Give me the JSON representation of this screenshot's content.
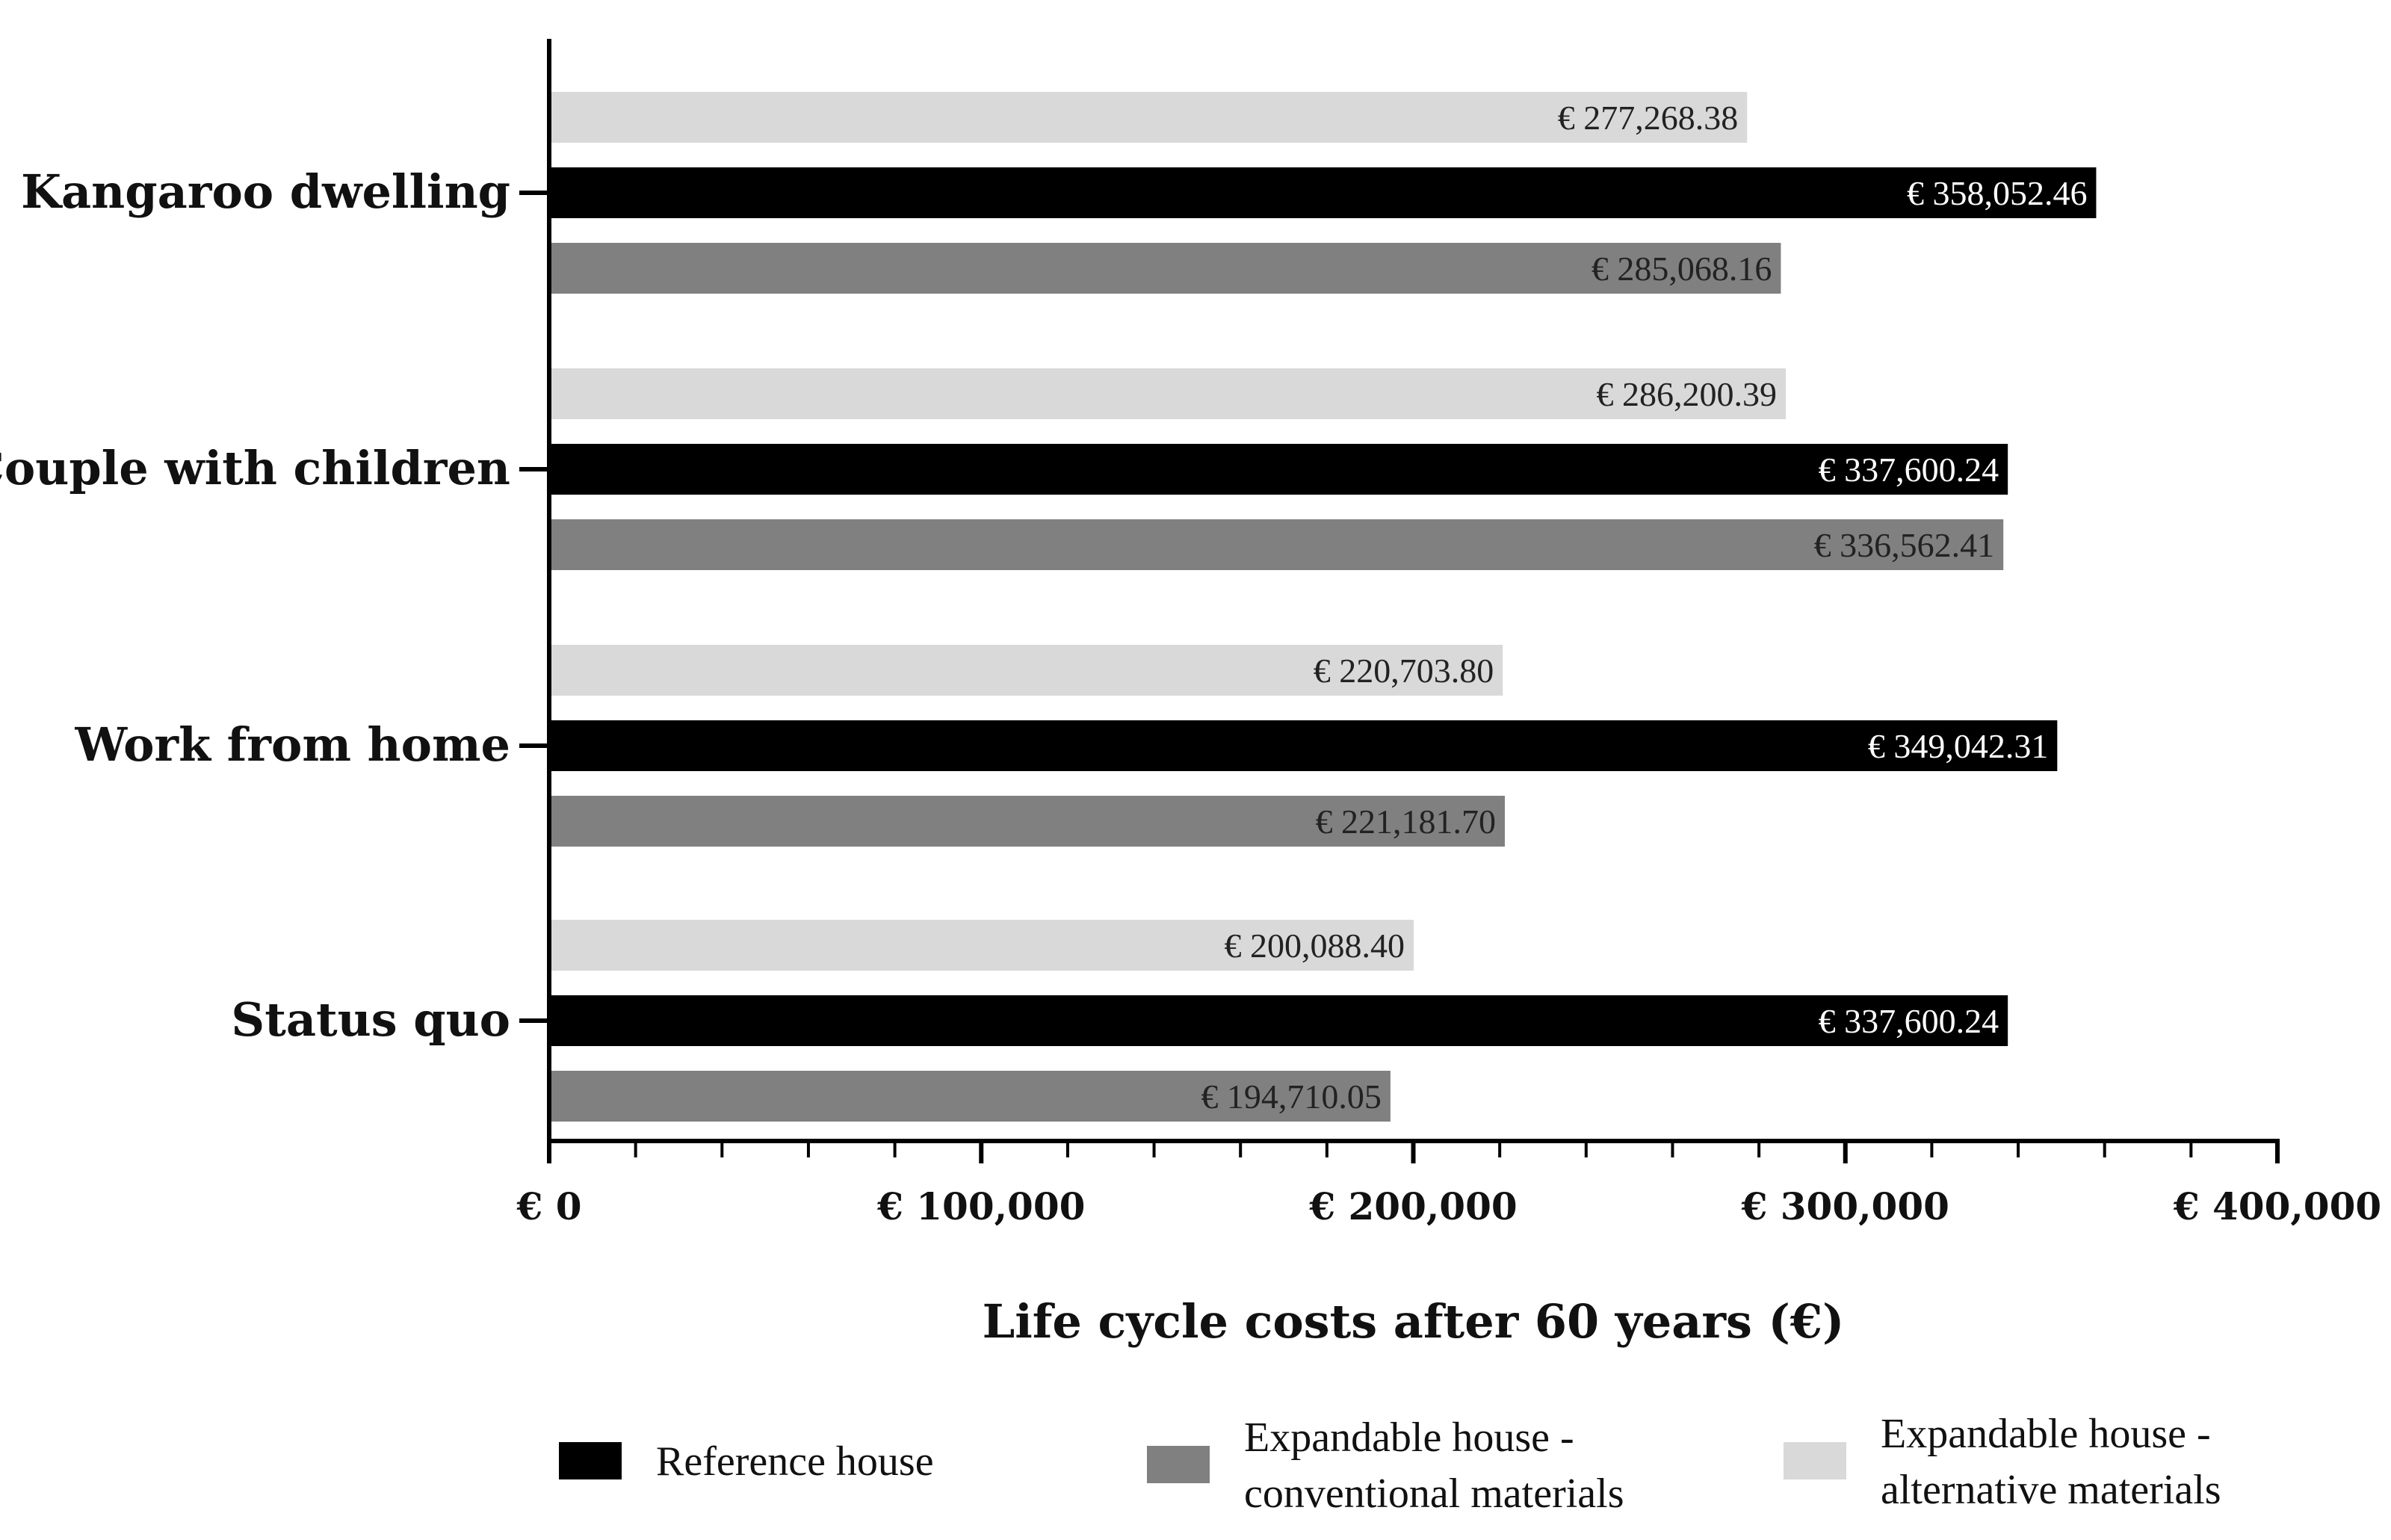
{
  "chart_data": {
    "type": "bar",
    "orientation": "horizontal",
    "title": "",
    "xlabel": "Life cycle costs after 60 years (€)",
    "ylabel": "",
    "xlim": [
      0,
      400000
    ],
    "x_tick_values": [
      0,
      100000,
      200000,
      300000,
      400000
    ],
    "x_tick_labels": [
      "€ 0",
      "€ 100,000",
      "€ 200,000",
      "€ 300,000",
      "€ 400,000"
    ],
    "categories": [
      "Kangaroo dwelling",
      "Couple with children",
      "Work from home",
      "Status quo"
    ],
    "series": [
      {
        "name": "Expandable house - alternative materials",
        "legend_lines": [
          "Expandable house -",
          "alternative materials"
        ],
        "color": "#d9d9d9",
        "label_color": "#222222",
        "values": [
          277268.38,
          286200.39,
          220703.8,
          200088.4
        ],
        "labels": [
          "€ 277,268.38",
          "€ 286,200.39",
          "€ 220,703.80",
          "€ 200,088.40"
        ]
      },
      {
        "name": "Reference house",
        "legend_lines": [
          "Reference house"
        ],
        "color": "#000000",
        "label_color": "#ffffff",
        "values": [
          358052.46,
          337600.24,
          349042.31,
          337600.24
        ],
        "labels": [
          "€ 358,052.46",
          "€ 337,600.24",
          "€ 349,042.31",
          "€ 337,600.24"
        ]
      },
      {
        "name": "Expandable house - conventional materials",
        "legend_lines": [
          "Expandable house -",
          "conventional materials"
        ],
        "color": "#808080",
        "label_color": "#222222",
        "values": [
          285068.16,
          336562.41,
          221181.7,
          194710.05
        ],
        "labels": [
          "€ 285,068.16",
          "€ 336,562.41",
          "€ 221,181.70",
          "€ 194,710.05"
        ]
      }
    ],
    "legend_order": [
      1,
      2,
      0
    ],
    "legend_position": "bottom"
  }
}
